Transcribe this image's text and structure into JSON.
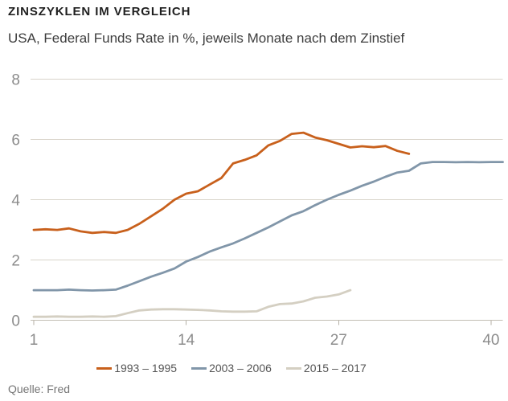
{
  "chart_data": {
    "type": "line",
    "title": "ZINSZYKLEN IM VERGLEICH",
    "subtitle": "USA, Federal Funds Rate in %, jeweils Monate nach dem Zinstief",
    "source": "Quelle: Fred",
    "xlabel": "",
    "ylabel": "",
    "xlim": [
      1,
      41
    ],
    "ylim": [
      0,
      8
    ],
    "x_ticks": [
      1,
      14,
      27,
      40
    ],
    "y_ticks": [
      0,
      2,
      4,
      6,
      8
    ],
    "grid": "horizontal",
    "legend_position": "bottom",
    "series": [
      {
        "id": "1993-1995",
        "name": "1993 – 1995",
        "color": "#c8601c",
        "x_start": 1,
        "values": [
          3.0,
          3.02,
          3.0,
          3.05,
          2.95,
          2.9,
          2.93,
          2.9,
          3.0,
          3.2,
          3.45,
          3.7,
          4.0,
          4.2,
          4.28,
          4.5,
          4.72,
          5.2,
          5.32,
          5.47,
          5.8,
          5.95,
          6.18,
          6.22,
          6.06,
          5.97,
          5.85,
          5.73,
          5.77,
          5.74,
          5.78,
          5.62,
          5.52
        ]
      },
      {
        "id": "2003-2006",
        "name": "2003 – 2006",
        "color": "#8196a9",
        "x_start": 1,
        "values": [
          1.0,
          1.0,
          1.0,
          1.02,
          1.0,
          0.99,
          1.0,
          1.02,
          1.15,
          1.3,
          1.45,
          1.58,
          1.72,
          1.95,
          2.1,
          2.28,
          2.42,
          2.55,
          2.72,
          2.9,
          3.08,
          3.28,
          3.48,
          3.62,
          3.82,
          4.0,
          4.16,
          4.3,
          4.46,
          4.6,
          4.76,
          4.9,
          4.96,
          5.2,
          5.25,
          5.25,
          5.24,
          5.25,
          5.24,
          5.25,
          5.25
        ]
      },
      {
        "id": "2015-2017",
        "name": "2015 – 2017",
        "color": "#d4cfc2",
        "x_start": 1,
        "values": [
          0.12,
          0.12,
          0.13,
          0.12,
          0.12,
          0.13,
          0.12,
          0.14,
          0.24,
          0.33,
          0.36,
          0.37,
          0.37,
          0.36,
          0.35,
          0.33,
          0.3,
          0.29,
          0.29,
          0.3,
          0.45,
          0.54,
          0.56,
          0.63,
          0.75,
          0.79,
          0.86,
          1.0
        ]
      }
    ]
  },
  "colors": {
    "background": "#ffffff",
    "title_text": "#1f1f1f",
    "subtitle_text": "#3d3d3d",
    "tick_label": "#8c8c8c",
    "gridline": "#d9d4ca",
    "axis_line": "#c2bdb3",
    "legend_text": "#555555",
    "source_text": "#757575"
  }
}
